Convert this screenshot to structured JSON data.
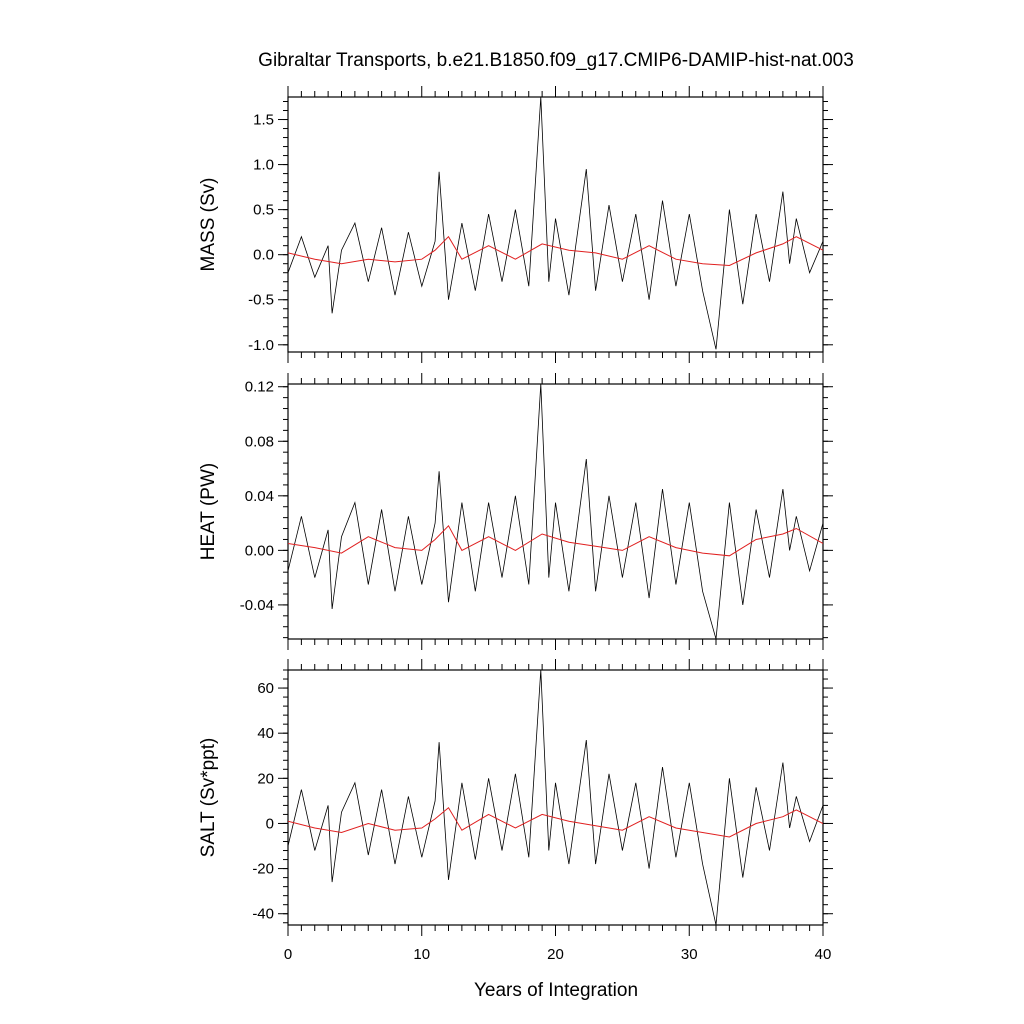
{
  "chart_data": [
    {
      "type": "line",
      "panel": "mass",
      "title": "Gibraltar Transports, b.e21.B1850.f09_g17.CMIP6-DAMIP-hist-nat.003",
      "xlabel": "",
      "ylabel": "MASS (Sv)",
      "xlim": [
        0,
        40
      ],
      "ylim": [
        -1.08,
        1.75
      ],
      "yticks": [
        -1.0,
        -0.5,
        0.0,
        0.5,
        1.0,
        1.5
      ],
      "ytick_labels": [
        "-1.0",
        "-0.5",
        "0.0",
        "0.5",
        "1.0",
        "1.5"
      ],
      "xticks": [
        0,
        10,
        20,
        30,
        40
      ],
      "xtick_labels": [],
      "series": [
        {
          "role": "monthly",
          "color": "#000000",
          "x": [
            0.0,
            1.0,
            2.0,
            3.0,
            3.3,
            4.0,
            5.0,
            6.0,
            7.0,
            8.0,
            9.0,
            10.0,
            11.0,
            11.3,
            12.0,
            13.0,
            14.0,
            15.0,
            16.0,
            17.0,
            18.0,
            18.9,
            19.5,
            20.0,
            21.0,
            22.3,
            23.0,
            24.0,
            25.0,
            26.0,
            27.0,
            28.0,
            29.0,
            30.0,
            31.0,
            32.0,
            33.0,
            34.0,
            35.0,
            36.0,
            37.0,
            37.5,
            38.0,
            39.0,
            40.0
          ],
          "y": [
            -0.2,
            0.2,
            -0.25,
            0.1,
            -0.65,
            0.05,
            0.35,
            -0.3,
            0.3,
            -0.45,
            0.25,
            -0.35,
            0.15,
            0.92,
            -0.5,
            0.35,
            -0.4,
            0.45,
            -0.3,
            0.5,
            -0.35,
            1.75,
            -0.3,
            0.4,
            -0.45,
            0.95,
            -0.4,
            0.55,
            -0.3,
            0.45,
            -0.5,
            0.6,
            -0.35,
            0.45,
            -0.4,
            -1.05,
            0.5,
            -0.55,
            0.45,
            -0.3,
            0.7,
            -0.1,
            0.4,
            -0.2,
            0.15
          ]
        },
        {
          "role": "smoothed",
          "color": "#e02020",
          "x": [
            0,
            2,
            4,
            6,
            8,
            10,
            11,
            12,
            13,
            15,
            17,
            19,
            21,
            23,
            25,
            27,
            29,
            31,
            33,
            35,
            37,
            38,
            40
          ],
          "y": [
            0.02,
            -0.05,
            -0.1,
            -0.05,
            -0.08,
            -0.05,
            0.05,
            0.2,
            -0.05,
            0.1,
            -0.05,
            0.12,
            0.05,
            0.02,
            -0.05,
            0.1,
            -0.05,
            -0.1,
            -0.12,
            0.02,
            0.12,
            0.2,
            0.05
          ]
        }
      ]
    },
    {
      "type": "line",
      "panel": "heat",
      "title": "",
      "xlabel": "",
      "ylabel": "HEAT (PW)",
      "xlim": [
        0,
        40
      ],
      "ylim": [
        -0.065,
        0.122
      ],
      "yticks": [
        -0.04,
        0.0,
        0.04,
        0.08,
        0.12
      ],
      "ytick_labels": [
        "-0.04",
        "0.00",
        "0.04",
        "0.08",
        "0.12"
      ],
      "xticks": [
        0,
        10,
        20,
        30,
        40
      ],
      "xtick_labels": [],
      "series": [
        {
          "role": "monthly",
          "color": "#000000",
          "x": [
            0.0,
            1.0,
            2.0,
            3.0,
            3.3,
            4.0,
            5.0,
            6.0,
            7.0,
            8.0,
            9.0,
            10.0,
            11.0,
            11.3,
            12.0,
            13.0,
            14.0,
            15.0,
            16.0,
            17.0,
            18.0,
            18.9,
            19.5,
            20.0,
            21.0,
            22.3,
            23.0,
            24.0,
            25.0,
            26.0,
            27.0,
            28.0,
            29.0,
            30.0,
            31.0,
            32.0,
            33.0,
            34.0,
            35.0,
            36.0,
            37.0,
            37.5,
            38.0,
            39.0,
            40.0
          ],
          "y": [
            -0.015,
            0.025,
            -0.02,
            0.015,
            -0.043,
            0.01,
            0.035,
            -0.025,
            0.03,
            -0.03,
            0.025,
            -0.025,
            0.02,
            0.058,
            -0.038,
            0.035,
            -0.03,
            0.035,
            -0.02,
            0.04,
            -0.025,
            0.122,
            -0.02,
            0.035,
            -0.03,
            0.067,
            -0.03,
            0.04,
            -0.02,
            0.035,
            -0.035,
            0.045,
            -0.025,
            0.035,
            -0.03,
            -0.065,
            0.035,
            -0.04,
            0.03,
            -0.02,
            0.045,
            0.0,
            0.025,
            -0.015,
            0.02
          ]
        },
        {
          "role": "smoothed",
          "color": "#e02020",
          "x": [
            0,
            2,
            4,
            6,
            8,
            10,
            11,
            12,
            13,
            15,
            17,
            19,
            21,
            23,
            25,
            27,
            29,
            31,
            33,
            35,
            37,
            38,
            40
          ],
          "y": [
            0.005,
            0.002,
            -0.002,
            0.01,
            0.002,
            0.0,
            0.008,
            0.018,
            0.0,
            0.01,
            0.0,
            0.012,
            0.006,
            0.003,
            0.0,
            0.01,
            0.002,
            -0.002,
            -0.004,
            0.008,
            0.012,
            0.016,
            0.005
          ]
        }
      ]
    },
    {
      "type": "line",
      "panel": "salt",
      "title": "",
      "xlabel": "Years of Integration",
      "ylabel": "SALT (Sv*ppt)",
      "xlim": [
        0,
        40
      ],
      "ylim": [
        -45,
        68
      ],
      "yticks": [
        -40,
        -20,
        0,
        20,
        40,
        60
      ],
      "ytick_labels": [
        "-40",
        "-20",
        "0",
        "20",
        "40",
        "60"
      ],
      "xticks": [
        0,
        10,
        20,
        30,
        40
      ],
      "xtick_labels": [
        "0",
        "10",
        "20",
        "30",
        "40"
      ],
      "series": [
        {
          "role": "monthly",
          "color": "#000000",
          "x": [
            0.0,
            1.0,
            2.0,
            3.0,
            3.3,
            4.0,
            5.0,
            6.0,
            7.0,
            8.0,
            9.0,
            10.0,
            11.0,
            11.3,
            12.0,
            13.0,
            14.0,
            15.0,
            16.0,
            17.0,
            18.0,
            18.9,
            19.5,
            20.0,
            21.0,
            22.3,
            23.0,
            24.0,
            25.0,
            26.0,
            27.0,
            28.0,
            29.0,
            30.0,
            31.0,
            32.0,
            33.0,
            34.0,
            35.0,
            36.0,
            37.0,
            37.5,
            38.0,
            39.0,
            40.0
          ],
          "y": [
            -10,
            15,
            -12,
            8,
            -26,
            5,
            18,
            -14,
            15,
            -18,
            12,
            -15,
            10,
            36,
            -25,
            18,
            -16,
            20,
            -12,
            22,
            -15,
            68,
            -12,
            18,
            -18,
            37,
            -18,
            22,
            -12,
            18,
            -20,
            25,
            -15,
            18,
            -18,
            -45,
            20,
            -24,
            16,
            -12,
            27,
            -2,
            12,
            -8,
            8
          ]
        },
        {
          "role": "smoothed",
          "color": "#e02020",
          "x": [
            0,
            2,
            4,
            6,
            8,
            10,
            11,
            12,
            13,
            15,
            17,
            19,
            21,
            23,
            25,
            27,
            29,
            31,
            33,
            35,
            37,
            38,
            40
          ],
          "y": [
            1,
            -2,
            -4,
            0,
            -3,
            -2,
            2,
            7,
            -3,
            4,
            -2,
            4,
            1,
            -1,
            -3,
            3,
            -2,
            -4,
            -6,
            0,
            3,
            6,
            0
          ]
        }
      ]
    }
  ]
}
